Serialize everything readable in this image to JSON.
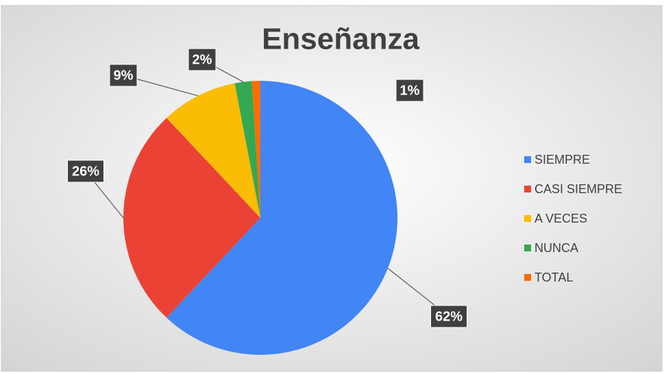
{
  "chart_data": {
    "type": "pie",
    "title": "Enseñanza",
    "categories": [
      "SIEMPRE",
      "CASI SIEMPRE",
      "A VECES",
      "NUNCA",
      "TOTAL"
    ],
    "values": [
      62,
      26,
      9,
      2,
      1
    ],
    "value_labels": [
      "62%",
      "26%",
      "9%",
      "2%",
      "1%"
    ],
    "colors": [
      "#4285f4",
      "#ea4335",
      "#fbbc04",
      "#34a853",
      "#ff6d01"
    ],
    "legend": "right"
  }
}
